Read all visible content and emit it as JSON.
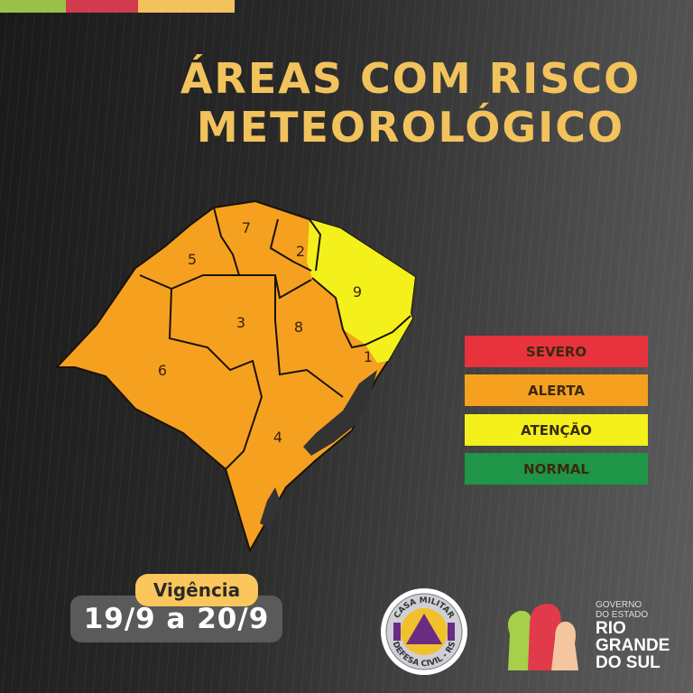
{
  "header": {
    "title_line1": "ÁREAS COM RISCO",
    "title_line2": "METEOROLÓGICO",
    "strip_colors": [
      "#9bc04a",
      "#d23a4e",
      "#f2c35c"
    ]
  },
  "map": {
    "regions": [
      {
        "id": "1",
        "level": "ALERTA"
      },
      {
        "id": "2",
        "level": "ALERTA"
      },
      {
        "id": "3",
        "level": "ALERTA"
      },
      {
        "id": "4",
        "level": "ALERTA"
      },
      {
        "id": "5",
        "level": "ALERTA"
      },
      {
        "id": "6",
        "level": "ALERTA"
      },
      {
        "id": "7",
        "level": "ALERTA"
      },
      {
        "id": "8",
        "level": "ALERTA"
      },
      {
        "id": "9",
        "level": "ATENÇÃO"
      }
    ]
  },
  "legend": [
    {
      "label": "SEVERO",
      "color": "#e8323c"
    },
    {
      "label": "ALERTA",
      "color": "#f5a11f"
    },
    {
      "label": "ATENÇÃO",
      "color": "#f3f01c"
    },
    {
      "label": "NORMAL",
      "color": "#1f9547"
    }
  ],
  "validity": {
    "label": "Vigência",
    "dates": "19/9 a 20/9"
  },
  "logos": {
    "defesa": {
      "top": "CASA MILITAR",
      "bottom": "DEFESA CIVIL - RS"
    },
    "gov": {
      "line1": "GOVERNO",
      "line2": "DO ESTADO",
      "line3": "RIO",
      "line4": "GRANDE",
      "line5": "DO SUL"
    }
  }
}
